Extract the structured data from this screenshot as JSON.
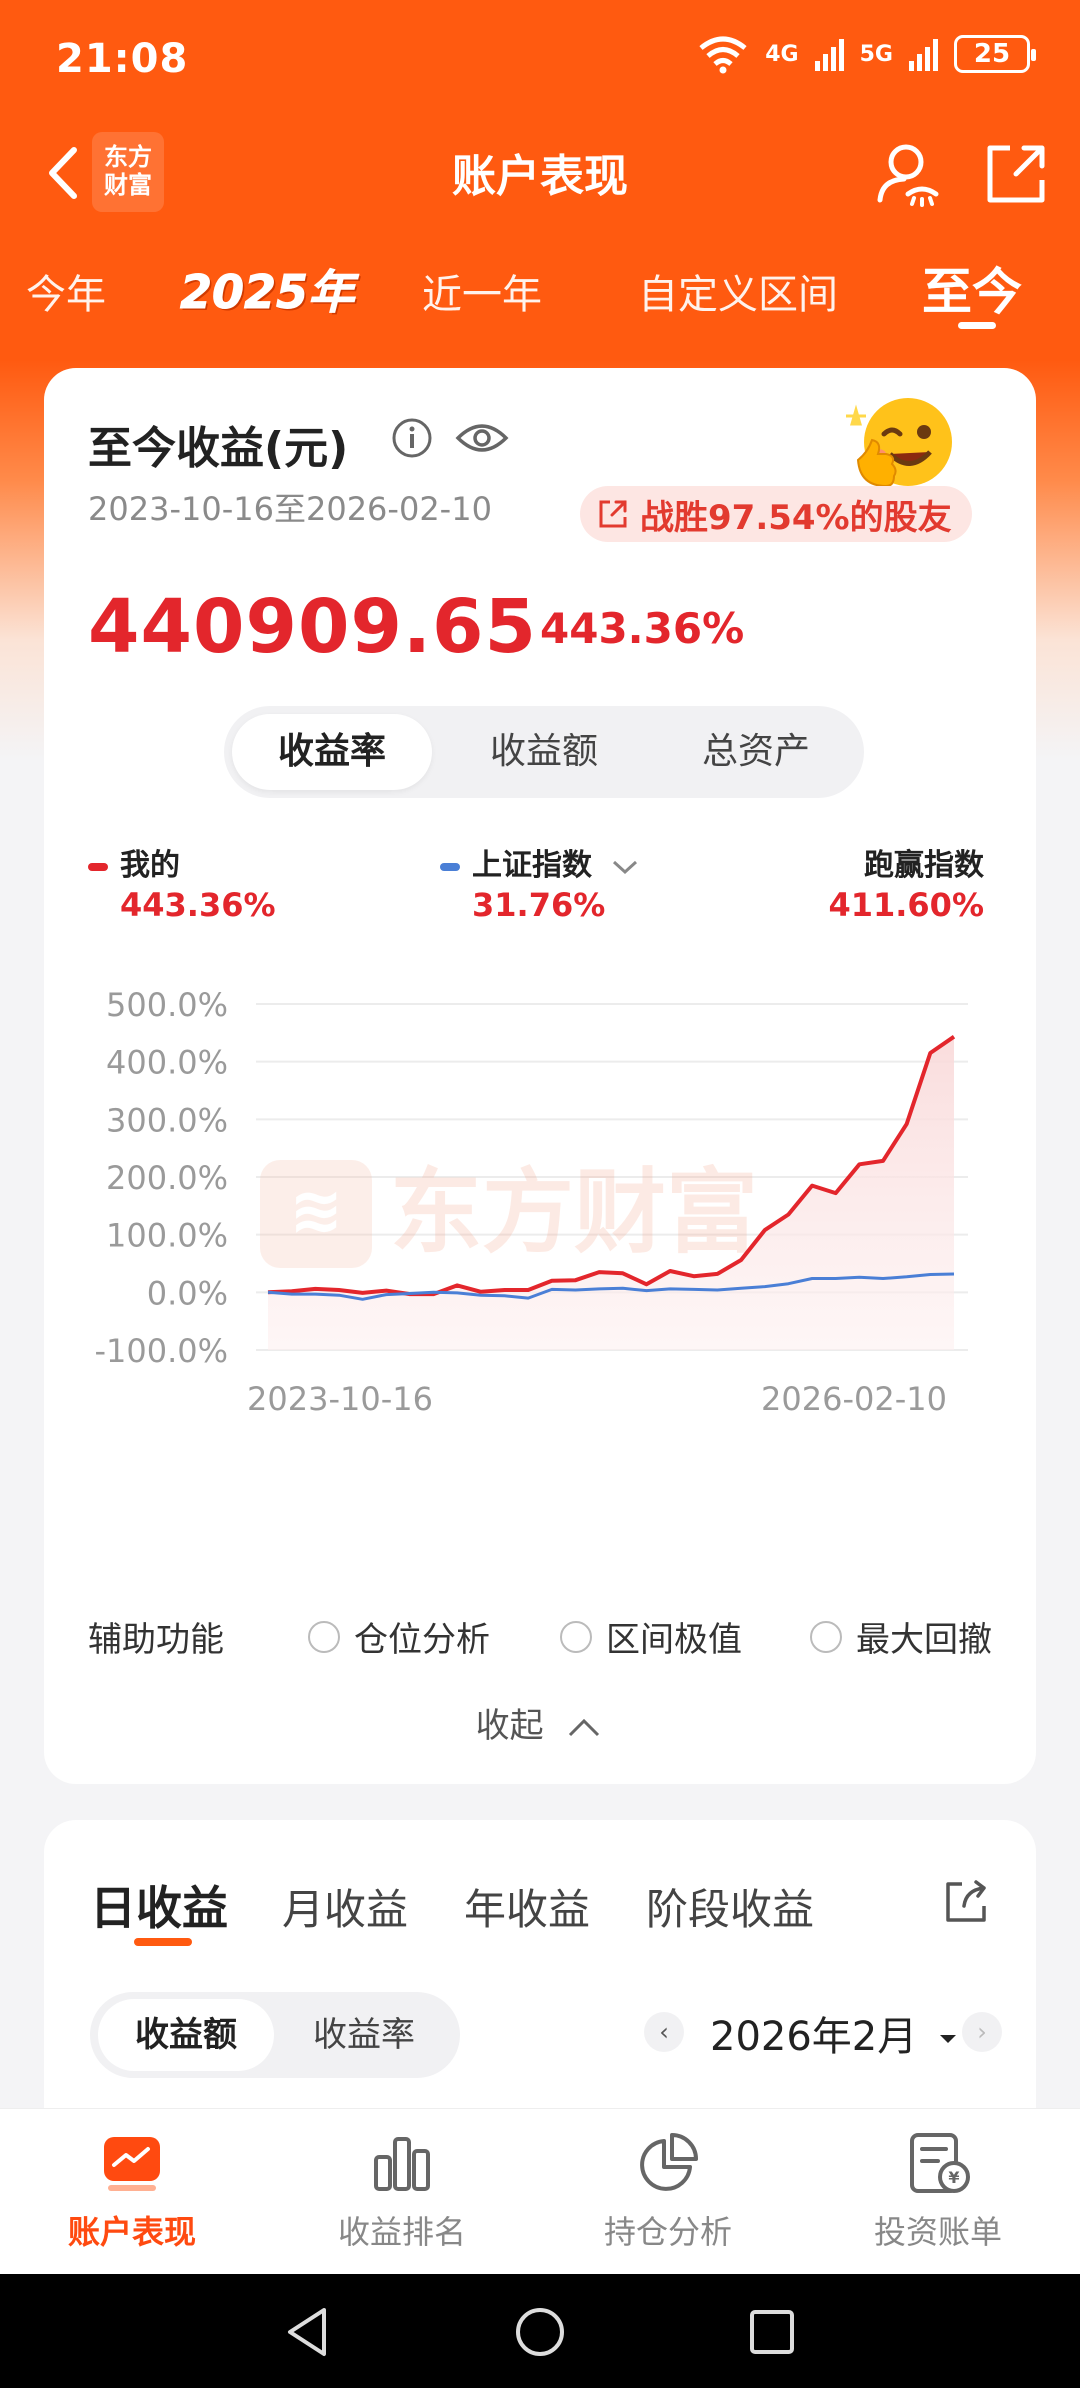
{
  "status": {
    "time": "21:08",
    "net1": "4G",
    "net2": "5G",
    "battery": "25"
  },
  "header": {
    "title": "账户表现",
    "logo_line1": "东方",
    "logo_line2": "财富"
  },
  "period_tabs": [
    "今年",
    "2025年",
    "近一年",
    "自定义区间",
    "至今"
  ],
  "card": {
    "title": "至今收益(元)",
    "date_range": "2023-10-16至2026-02-10",
    "beat_text": "战胜97.54%的股友",
    "amount": "440909.65",
    "amount_pct": "443.36%",
    "segments": [
      "收益率",
      "收益额",
      "总资产"
    ],
    "legend": [
      {
        "label": "我的",
        "value": "443.36%",
        "color": "#e3262c"
      },
      {
        "label": "上证指数",
        "value": "31.76%",
        "color": "#4a7fd6"
      },
      {
        "label": "跑赢指数",
        "value": "411.60%"
      }
    ],
    "watermark": "东方财富",
    "aux_label": "辅助功能",
    "aux_options": [
      "仓位分析",
      "区间极值",
      "最大回撤"
    ],
    "collapse": "收起"
  },
  "chart_data": {
    "type": "line",
    "ylim": [
      -100,
      500
    ],
    "ytick_labels": [
      "500.0%",
      "400.0%",
      "300.0%",
      "200.0%",
      "100.0%",
      "0.0%",
      "-100.0%"
    ],
    "xtick_labels": [
      "2023-10-16",
      "2026-02-10"
    ],
    "series": [
      {
        "name": "我的",
        "color": "#e3262c",
        "values": [
          0,
          2,
          6,
          4,
          -1,
          3,
          -3,
          -3,
          12,
          1,
          4,
          4,
          20,
          21,
          35,
          33,
          14,
          37,
          28,
          32,
          56,
          108,
          135,
          185,
          172,
          222,
          228,
          292,
          415,
          443.36
        ]
      },
      {
        "name": "上证指数",
        "color": "#4a7fd6",
        "values": [
          0,
          -3,
          -3,
          -5,
          -12,
          -4,
          -2,
          0,
          -1,
          -5,
          -6,
          -10,
          5,
          4,
          6,
          7,
          3,
          6,
          5,
          4,
          7,
          10,
          15,
          24,
          24,
          26,
          24,
          27,
          31,
          31.76
        ]
      }
    ]
  },
  "returns": {
    "tabs": [
      "日收益",
      "月收益",
      "年收益",
      "阶段收益"
    ],
    "segments": [
      "收益额",
      "收益率"
    ],
    "month": "2026年2月"
  },
  "tabbar": [
    "账户表现",
    "收益排名",
    "持仓分析",
    "投资账单"
  ]
}
